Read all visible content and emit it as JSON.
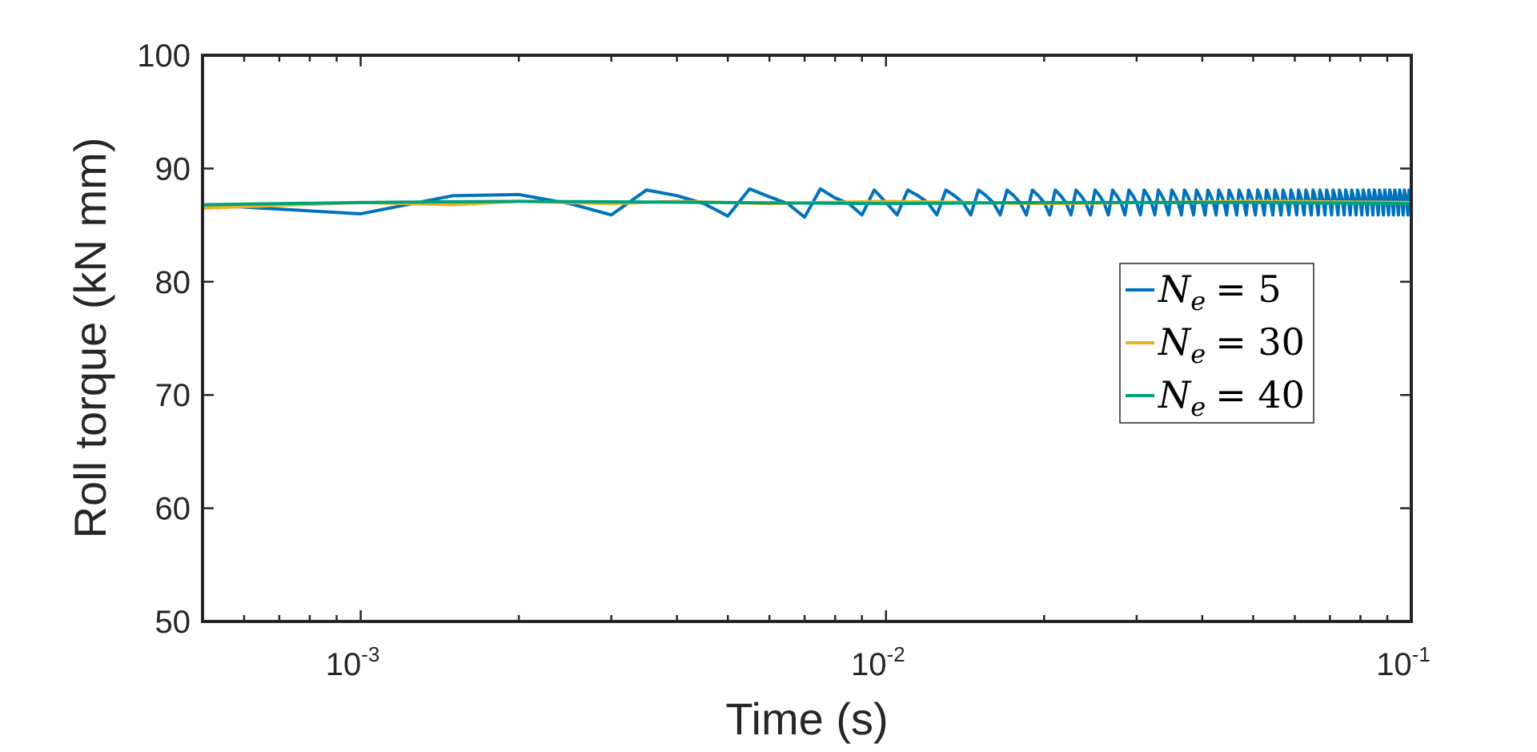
{
  "chart_data": {
    "type": "line",
    "title": "",
    "xlabel": "Time (s)",
    "ylabel": "Roll torque (kN mm)",
    "xscale": "log",
    "xlim": [
      0.0005,
      0.1
    ],
    "ylim": [
      50,
      100
    ],
    "x_ticks": [
      {
        "value": 0.001,
        "base": "10",
        "exp": "-3"
      },
      {
        "value": 0.01,
        "base": "10",
        "exp": "-2"
      },
      {
        "value": 0.1,
        "base": "10",
        "exp": "-1"
      }
    ],
    "y_ticks": [
      50,
      60,
      70,
      80,
      90,
      100
    ],
    "grid": false,
    "legend_position": "right",
    "series": [
      {
        "name": "N_e = 5",
        "legend_label": {
          "sym": "N",
          "sub": "e",
          "rhs": "= 5"
        },
        "color": "#0072BD",
        "oscillation": true,
        "x_start": 0.0005,
        "dt": 0.0005,
        "mean": 87.0,
        "amplitude": 1.1,
        "points": [
          [
            0.0005,
            86.8
          ],
          [
            0.001,
            86.0
          ],
          [
            0.0015,
            87.6
          ],
          [
            0.002,
            87.7
          ],
          [
            0.0025,
            86.9
          ],
          [
            0.003,
            85.9
          ],
          [
            0.0035,
            88.1
          ],
          [
            0.004,
            87.6
          ],
          [
            0.0045,
            86.9
          ],
          [
            0.005,
            85.8
          ],
          [
            0.0055,
            88.2
          ],
          [
            0.006,
            87.5
          ],
          [
            0.0065,
            86.9
          ],
          [
            0.007,
            85.7
          ],
          [
            0.0075,
            88.2
          ],
          [
            0.008,
            87.4
          ],
          [
            0.0085,
            86.9
          ],
          [
            0.009,
            85.9
          ],
          [
            0.0095,
            88.1
          ]
        ]
      },
      {
        "name": "N_e = 30",
        "legend_label": {
          "sym": "N",
          "sub": "e",
          "rhs": "= 30"
        },
        "color": "#EDB120",
        "points": [
          [
            0.0005,
            86.5
          ],
          [
            0.001,
            87.0
          ],
          [
            0.0015,
            86.8
          ],
          [
            0.002,
            87.1
          ],
          [
            0.003,
            86.9
          ],
          [
            0.004,
            87.1
          ],
          [
            0.006,
            86.9
          ],
          [
            0.01,
            87.1
          ],
          [
            0.02,
            86.9
          ],
          [
            0.05,
            87.1
          ],
          [
            0.1,
            87.0
          ]
        ]
      },
      {
        "name": "N_e = 40",
        "legend_label": {
          "sym": "N",
          "sub": "e",
          "rhs": "= 40"
        },
        "color": "#00A27C",
        "points": [
          [
            0.0005,
            86.8
          ],
          [
            0.001,
            87.0
          ],
          [
            0.002,
            87.1
          ],
          [
            0.005,
            87.0
          ],
          [
            0.01,
            86.9
          ],
          [
            0.02,
            87.0
          ],
          [
            0.05,
            87.0
          ],
          [
            0.1,
            86.9
          ]
        ]
      }
    ]
  }
}
